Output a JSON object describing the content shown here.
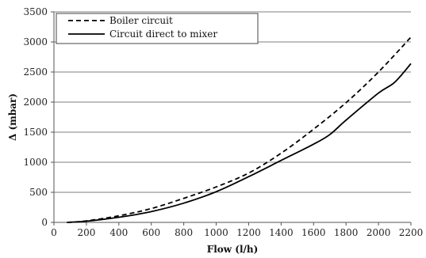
{
  "chart_data": {
    "type": "line",
    "title": "",
    "xlabel": "Flow (l/h)",
    "ylabel": "Δ (mbar)",
    "xlim": [
      0,
      2200
    ],
    "ylim": [
      0,
      3500
    ],
    "x_ticks": [
      0,
      200,
      400,
      600,
      800,
      1000,
      1200,
      1400,
      1600,
      1800,
      2000,
      2200
    ],
    "y_ticks": [
      0,
      500,
      1000,
      1500,
      2000,
      2500,
      3000,
      3500
    ],
    "grid": "horizontal",
    "legend": "top-left",
    "series": [
      {
        "name": "Boiler circuit",
        "style": "dashed",
        "color": "#000000",
        "points": [
          [
            80,
            0
          ],
          [
            200,
            25
          ],
          [
            400,
            110
          ],
          [
            600,
            230
          ],
          [
            800,
            400
          ],
          [
            1000,
            590
          ],
          [
            1200,
            820
          ],
          [
            1400,
            1150
          ],
          [
            1600,
            1550
          ],
          [
            1800,
            1990
          ],
          [
            2000,
            2500
          ],
          [
            2200,
            3080
          ]
        ]
      },
      {
        "name": "Circuit direct to mixer",
        "style": "solid",
        "color": "#000000",
        "points": [
          [
            80,
            0
          ],
          [
            200,
            20
          ],
          [
            400,
            85
          ],
          [
            600,
            180
          ],
          [
            800,
            320
          ],
          [
            1000,
            510
          ],
          [
            1200,
            760
          ],
          [
            1400,
            1030
          ],
          [
            1600,
            1300
          ],
          [
            1700,
            1460
          ],
          [
            1800,
            1700
          ],
          [
            2000,
            2150
          ],
          [
            2100,
            2330
          ],
          [
            2200,
            2640
          ]
        ]
      }
    ]
  }
}
